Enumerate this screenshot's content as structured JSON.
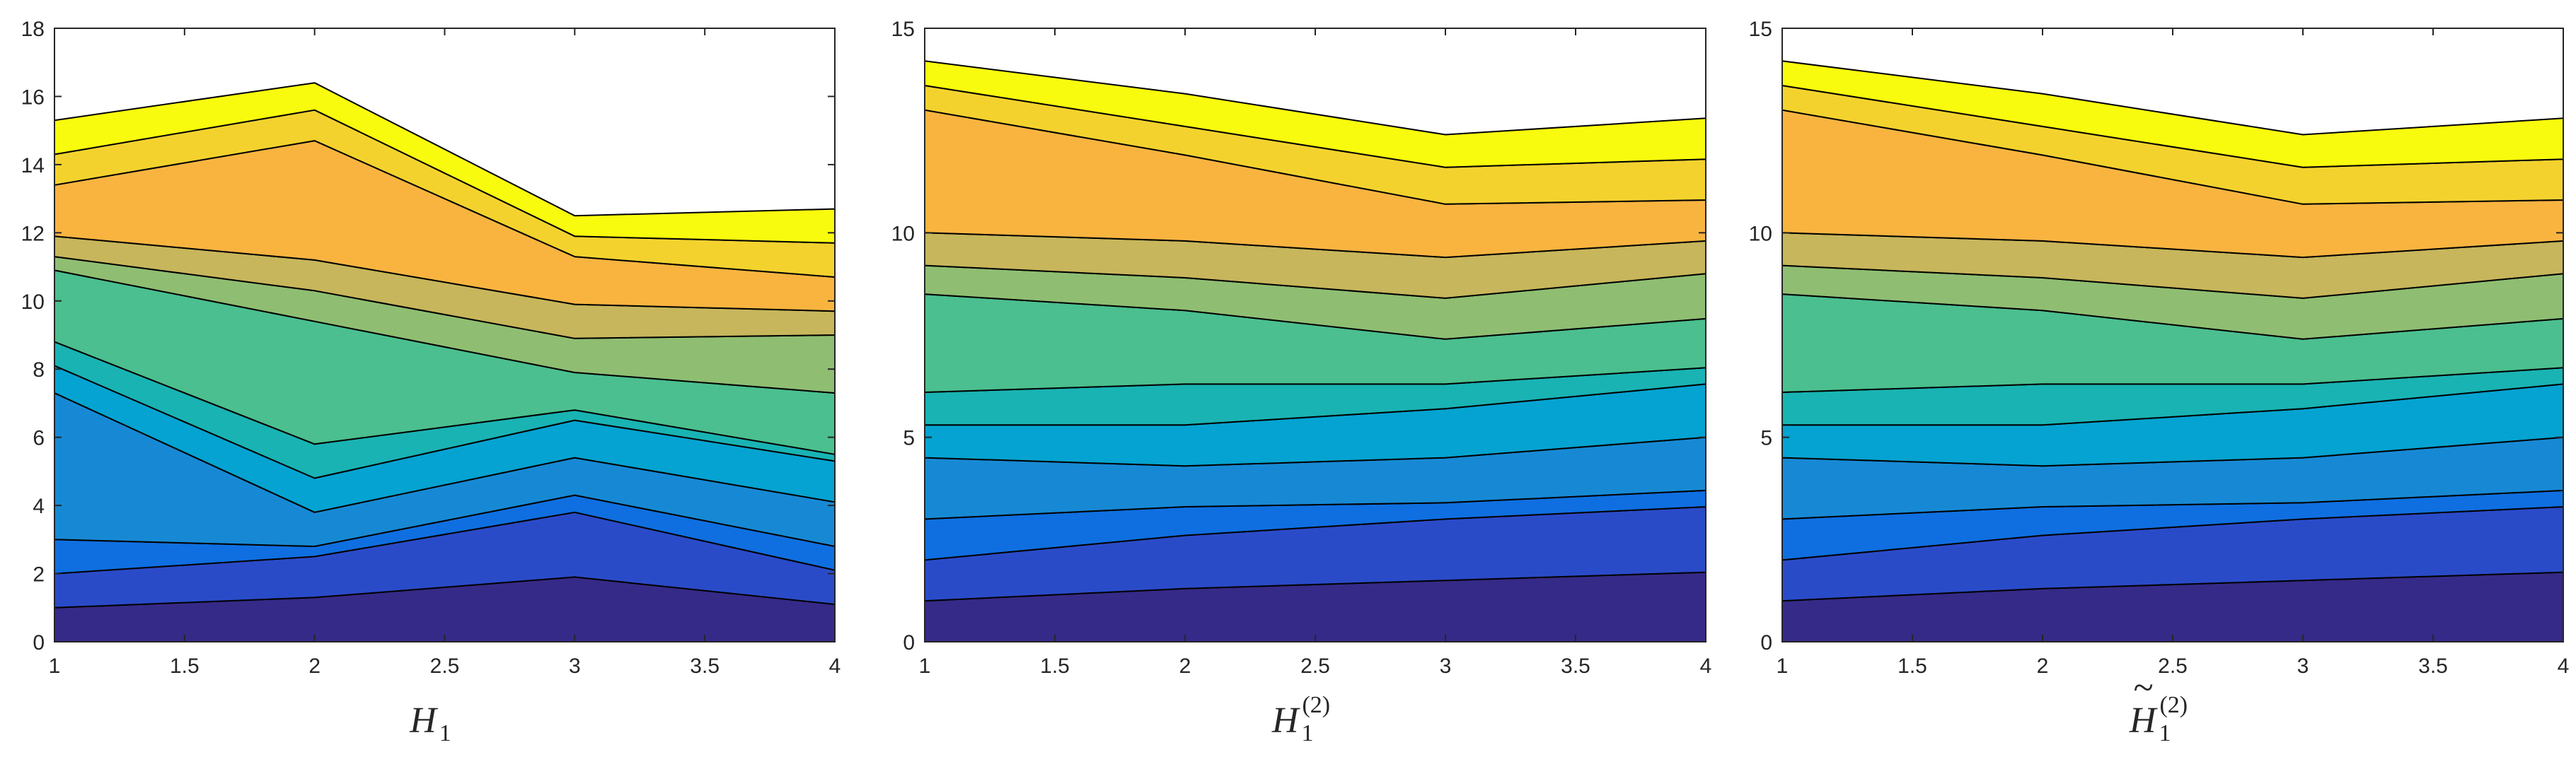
{
  "palette": [
    "#352a87",
    "#2a4bc8",
    "#0f6fe0",
    "#1789d4",
    "#05a3d1",
    "#19b3b3",
    "#4bbf8f",
    "#8fbe72",
    "#c7b65b",
    "#f9b440",
    "#f4d22e",
    "#f9fb0e"
  ],
  "chart_data": [
    {
      "type": "area",
      "stacked": true,
      "xlabel": "H1",
      "x": [
        1,
        2,
        3,
        4
      ],
      "xticks": [
        "1",
        "1.5",
        "2",
        "2.5",
        "3",
        "3.5",
        "4"
      ],
      "yticks": [
        "0",
        "2",
        "4",
        "6",
        "8",
        "10",
        "12",
        "14",
        "16",
        "18"
      ],
      "xlim": [
        1,
        4
      ],
      "ylim": [
        0,
        18
      ],
      "grid": false,
      "series": [
        {
          "values": [
            1.0,
            1.3,
            1.9,
            1.1
          ]
        },
        {
          "values": [
            1.0,
            1.2,
            1.9,
            1.0
          ]
        },
        {
          "values": [
            1.0,
            0.3,
            0.5,
            0.7
          ]
        },
        {
          "values": [
            4.3,
            1.0,
            1.1,
            1.3
          ]
        },
        {
          "values": [
            0.8,
            1.0,
            1.1,
            1.2
          ]
        },
        {
          "values": [
            0.7,
            1.0,
            0.3,
            0.2
          ]
        },
        {
          "values": [
            2.1,
            3.6,
            1.1,
            1.8
          ]
        },
        {
          "values": [
            0.4,
            0.9,
            1.0,
            1.7
          ]
        },
        {
          "values": [
            0.6,
            0.9,
            1.0,
            0.7
          ]
        },
        {
          "values": [
            1.5,
            3.5,
            1.4,
            1.0
          ]
        },
        {
          "values": [
            0.9,
            0.9,
            0.6,
            1.0
          ]
        },
        {
          "values": [
            1.0,
            0.8,
            0.6,
            1.0
          ]
        }
      ]
    },
    {
      "type": "area",
      "stacked": true,
      "xlabel": "H1",
      "xlabel_sup": "(2)",
      "x": [
        1,
        2,
        3,
        4
      ],
      "xticks": [
        "1",
        "1.5",
        "2",
        "2.5",
        "3",
        "3.5",
        "4"
      ],
      "yticks": [
        "0",
        "5",
        "10",
        "15"
      ],
      "xlim": [
        1,
        4
      ],
      "ylim": [
        0,
        15
      ],
      "grid": false,
      "series": [
        {
          "values": [
            1.0,
            1.3,
            1.5,
            1.7
          ]
        },
        {
          "values": [
            1.0,
            1.3,
            1.5,
            1.6
          ]
        },
        {
          "values": [
            1.0,
            0.7,
            0.4,
            0.4
          ]
        },
        {
          "values": [
            1.5,
            1.0,
            1.1,
            1.3
          ]
        },
        {
          "values": [
            0.8,
            1.0,
            1.2,
            1.3
          ]
        },
        {
          "values": [
            0.8,
            1.0,
            0.6,
            0.4
          ]
        },
        {
          "values": [
            2.4,
            1.8,
            1.1,
            1.2
          ]
        },
        {
          "values": [
            0.7,
            0.8,
            1.0,
            1.1
          ]
        },
        {
          "values": [
            0.8,
            0.9,
            1.0,
            0.8
          ]
        },
        {
          "values": [
            3.0,
            2.1,
            1.3,
            1.0
          ]
        },
        {
          "values": [
            0.6,
            0.7,
            0.9,
            1.0
          ]
        },
        {
          "values": [
            0.6,
            0.8,
            0.8,
            1.0
          ]
        }
      ]
    },
    {
      "type": "area",
      "stacked": true,
      "xlabel": "H1",
      "xlabel_sup": "(2)",
      "xlabel_accent": "~",
      "x": [
        1,
        2,
        3,
        4
      ],
      "xticks": [
        "1",
        "1.5",
        "2",
        "2.5",
        "3",
        "3.5",
        "4"
      ],
      "yticks": [
        "0",
        "5",
        "10",
        "15"
      ],
      "xlim": [
        1,
        4
      ],
      "ylim": [
        0,
        15
      ],
      "grid": false,
      "series": [
        {
          "values": [
            1.0,
            1.3,
            1.5,
            1.7
          ]
        },
        {
          "values": [
            1.0,
            1.3,
            1.5,
            1.6
          ]
        },
        {
          "values": [
            1.0,
            0.7,
            0.4,
            0.4
          ]
        },
        {
          "values": [
            1.5,
            1.0,
            1.1,
            1.3
          ]
        },
        {
          "values": [
            0.8,
            1.0,
            1.2,
            1.3
          ]
        },
        {
          "values": [
            0.8,
            1.0,
            0.6,
            0.4
          ]
        },
        {
          "values": [
            2.4,
            1.8,
            1.1,
            1.2
          ]
        },
        {
          "values": [
            0.7,
            0.8,
            1.0,
            1.1
          ]
        },
        {
          "values": [
            0.8,
            0.9,
            1.0,
            0.8
          ]
        },
        {
          "values": [
            3.0,
            2.1,
            1.3,
            1.0
          ]
        },
        {
          "values": [
            0.6,
            0.7,
            0.9,
            1.0
          ]
        },
        {
          "values": [
            0.6,
            0.8,
            0.8,
            1.0
          ]
        }
      ]
    }
  ]
}
